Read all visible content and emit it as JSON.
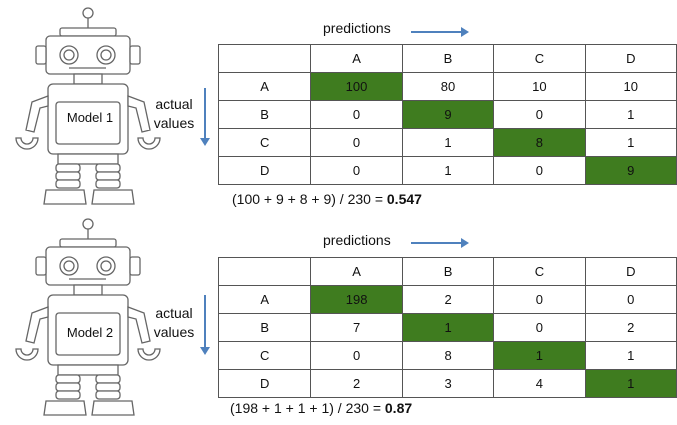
{
  "models": [
    {
      "robot_label": "Model 1",
      "predictions_label": "predictions",
      "actual_label": [
        "actual",
        "values"
      ],
      "columns": [
        "A",
        "B",
        "C",
        "D"
      ],
      "rows": [
        {
          "label": "A",
          "values": [
            "100",
            "80",
            "10",
            "10"
          ]
        },
        {
          "label": "B",
          "values": [
            "0",
            "9",
            "0",
            "1"
          ]
        },
        {
          "label": "C",
          "values": [
            "0",
            "1",
            "8",
            "1"
          ]
        },
        {
          "label": "D",
          "values": [
            "0",
            "1",
            "0",
            "9"
          ]
        }
      ],
      "formula_text": "(100 + 9 + 8 + 9) / 230 = ",
      "formula_result": "0.547"
    },
    {
      "robot_label": "Model 2",
      "predictions_label": "predictions",
      "actual_label": [
        "actual",
        "values"
      ],
      "columns": [
        "A",
        "B",
        "C",
        "D"
      ],
      "rows": [
        {
          "label": "A",
          "values": [
            "198",
            "2",
            "0",
            "0"
          ]
        },
        {
          "label": "B",
          "values": [
            "7",
            "1",
            "0",
            "2"
          ]
        },
        {
          "label": "C",
          "values": [
            "0",
            "8",
            "1",
            "1"
          ]
        },
        {
          "label": "D",
          "values": [
            "2",
            "3",
            "4",
            "1"
          ]
        }
      ],
      "formula_text": "(198 + 1 + 1 + 1) / 230 = ",
      "formula_result": "0.87"
    }
  ],
  "colors": {
    "diagonal_highlight": "#3f7c1f",
    "arrow": "#4f81bd"
  }
}
